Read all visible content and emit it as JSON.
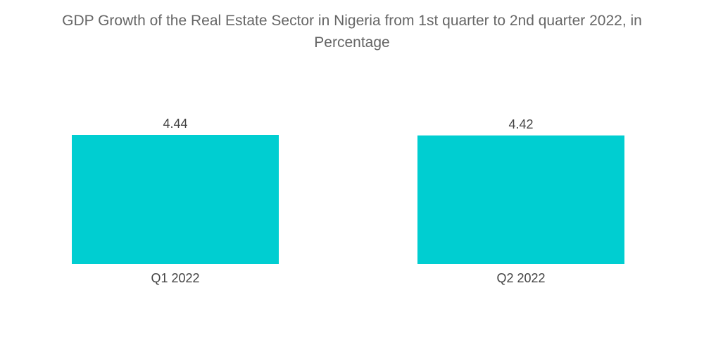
{
  "chart_data": {
    "type": "bar",
    "title_line1": "GDP Growth of the Real Estate Sector in Nigeria from 1st quarter to 2nd quarter 2022, in",
    "title_line2": "Percentage",
    "categories": [
      "Q1 2022",
      "Q2 2022"
    ],
    "values": [
      4.44,
      4.42
    ],
    "data_labels": [
      "4.44",
      "4.42"
    ],
    "xlabel": "",
    "ylabel": "",
    "ylim": [
      0,
      4.44
    ],
    "grid": false,
    "legend": "none",
    "bar_color": "#00CED1"
  }
}
